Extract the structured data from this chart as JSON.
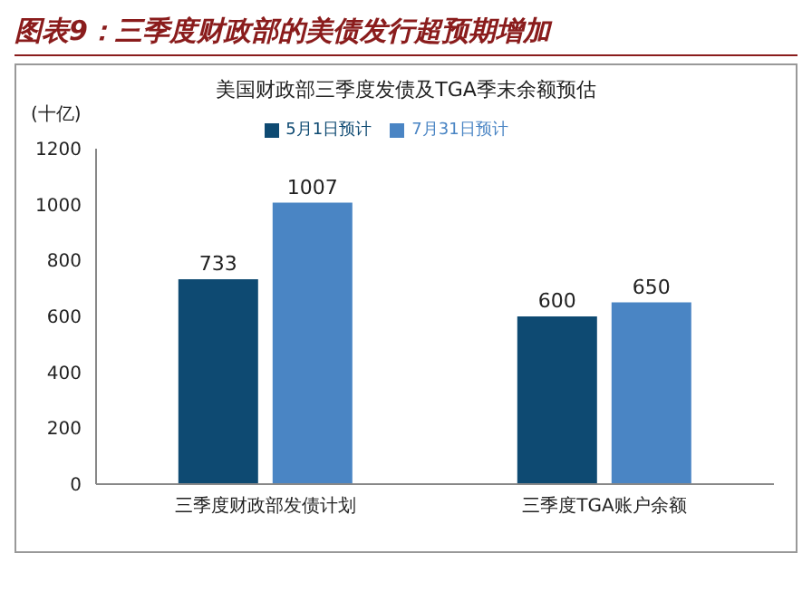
{
  "chart_data": {
    "type": "bar",
    "title": "图表9：三季度财政部的美债发行超预期增加",
    "subtitle": "美国财政部三季度发债及TGA季末余额预估",
    "ylabel": "(十亿)",
    "categories": [
      "三季度财政部发债计划",
      "三季度TGA账户余额"
    ],
    "series": [
      {
        "name": "5月1日预计",
        "color": "#0e4a72",
        "values": [
          733,
          600
        ]
      },
      {
        "name": "7月31日预计",
        "color": "#4a85c4",
        "values": [
          1007,
          650
        ]
      }
    ],
    "ylim": [
      0,
      1200
    ],
    "yticks": [
      0,
      200,
      400,
      600,
      800,
      1000,
      1200
    ],
    "grid": false,
    "legend": "top",
    "data_labels": true
  }
}
